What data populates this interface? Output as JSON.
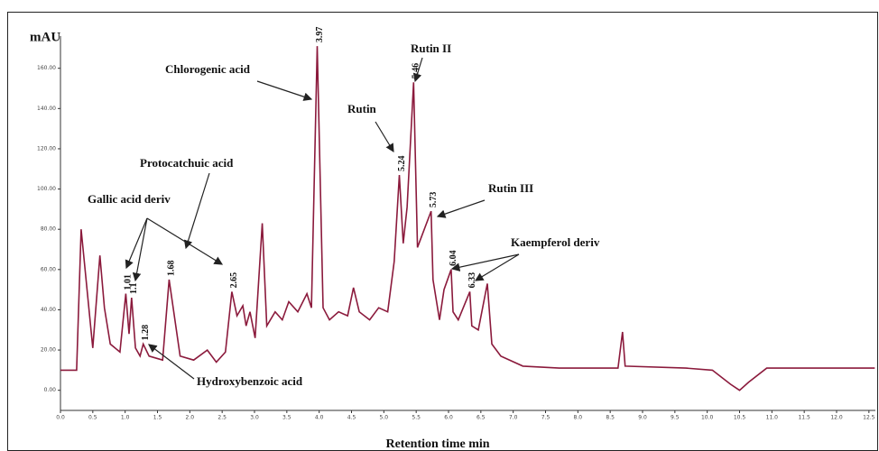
{
  "chart_data": {
    "type": "line",
    "ylabel": "mAU",
    "xlabel": "Retention time min",
    "x": [
      0,
      0.25,
      0.32,
      0.5,
      0.61,
      0.68,
      0.77,
      0.92,
      1.01,
      1.06,
      1.1,
      1.16,
      1.23,
      1.28,
      1.37,
      1.58,
      1.68,
      1.85,
      2.06,
      2.27,
      2.41,
      2.55,
      2.65,
      2.73,
      2.82,
      2.87,
      2.93,
      3.01,
      3.12,
      3.19,
      3.32,
      3.43,
      3.53,
      3.67,
      3.81,
      3.88,
      3.97,
      4.06,
      4.16,
      4.3,
      4.44,
      4.53,
      4.62,
      4.78,
      4.92,
      5.06,
      5.16,
      5.24,
      5.3,
      5.36,
      5.46,
      5.52,
      5.73,
      5.76,
      5.86,
      5.93,
      6.04,
      6.07,
      6.15,
      6.33,
      6.36,
      6.46,
      6.6,
      6.67,
      6.81,
      7.15,
      7.71,
      8.62,
      8.69,
      8.73,
      9.67,
      10.08,
      10.36,
      10.5,
      10.64,
      10.92,
      12.59
    ],
    "series": [
      {
        "color": "#8b1a3c",
        "values": [
          10,
          10,
          80,
          21,
          67,
          41,
          23,
          19,
          48,
          28,
          46,
          21,
          17,
          23,
          17,
          15,
          55,
          17,
          15,
          20,
          14,
          19,
          49,
          37,
          42,
          32,
          39,
          26,
          83,
          32,
          39,
          35,
          44,
          39,
          48,
          41,
          171,
          41,
          35,
          39,
          37,
          51,
          39,
          35,
          41,
          39,
          64,
          107,
          73,
          91,
          153,
          71,
          89,
          55,
          35,
          50,
          60,
          39,
          35,
          49,
          32,
          30,
          53,
          23,
          17,
          12,
          11,
          11,
          29,
          12,
          11,
          10,
          3,
          0,
          4,
          11,
          11
        ]
      }
    ],
    "peak_times": [
      1.01,
      1.1,
      1.28,
      1.68,
      2.65,
      3.97,
      5.24,
      5.46,
      5.73,
      6.04,
      6.33
    ],
    "annotations": [
      "Chlorogenic acid",
      "Rutin II",
      "Rutin",
      "Rutin III",
      "Kaempferol deriv",
      "Protocatchuic acid",
      "Gallic acid deriv",
      "Hydroxybenzoic   acid"
    ],
    "xlim": [
      0,
      12.6
    ],
    "ylim": [
      -10,
      176
    ],
    "xticks": [
      {
        "value": 0,
        "label": "0.0"
      },
      0.5,
      {
        "value": 1,
        "label": "1.0"
      },
      1.5,
      {
        "value": 2,
        "label": "2.0"
      },
      2.5,
      {
        "value": 3,
        "label": "3.0"
      },
      3.5,
      {
        "value": 4,
        "label": "4.0"
      },
      4.5,
      {
        "value": 5,
        "label": "5.0"
      },
      5.5,
      {
        "value": 6,
        "label": "6.0"
      },
      6.5,
      {
        "value": 7,
        "label": "7.0"
      },
      7.5,
      {
        "value": 8,
        "label": "8.0"
      },
      8.5,
      {
        "value": 9,
        "label": "9.0"
      },
      9.5,
      {
        "value": 10,
        "label": "10.0"
      },
      10.5,
      {
        "value": 11,
        "label": "11.0"
      },
      11.5,
      {
        "value": 12,
        "label": "12.0"
      },
      12.5
    ],
    "yticks": [
      {
        "value": 0,
        "label": "0.00"
      },
      {
        "value": 20,
        "label": "20.00"
      },
      {
        "value": 40,
        "label": "40.00"
      },
      {
        "value": 60,
        "label": "60.00"
      },
      {
        "value": 80,
        "label": "80.00"
      },
      {
        "value": 100,
        "label": "100.00"
      },
      {
        "value": 120,
        "label": "120.00"
      },
      {
        "value": 140,
        "label": "140.00"
      },
      {
        "value": 160,
        "label": "160.00"
      }
    ]
  }
}
